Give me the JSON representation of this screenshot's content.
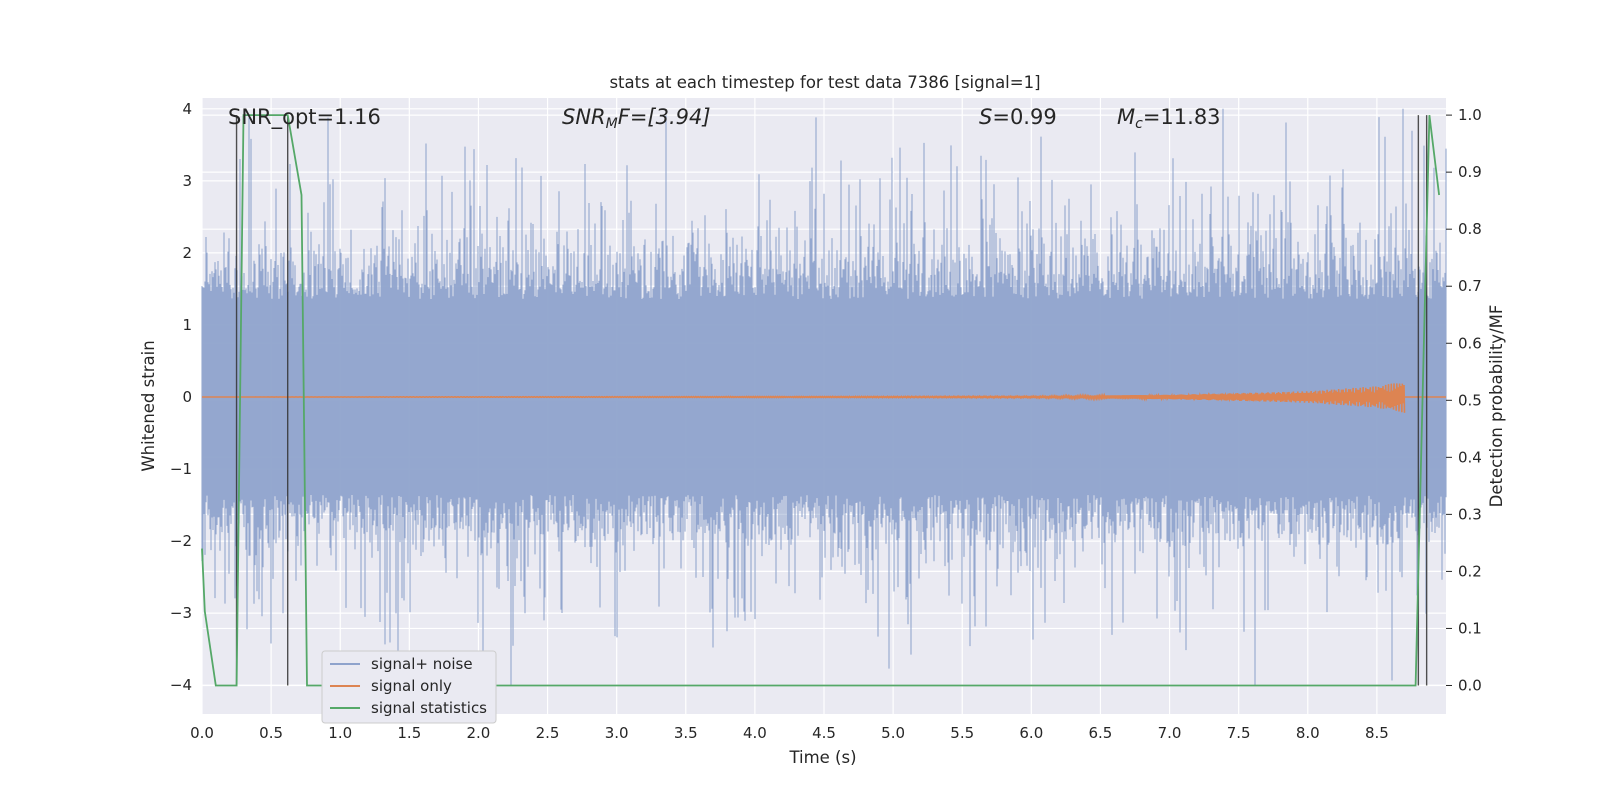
{
  "chart_data": {
    "type": "line",
    "title": "stats at each timestep for test data 7386 [signal=1]",
    "xlabel": "Time (s)",
    "ylabel": "Whitened strain",
    "y2label": "Detection probability/MF",
    "xlim": [
      0.0,
      9.0
    ],
    "ylim": [
      -4.4,
      4.15
    ],
    "y2lim": [
      -0.05,
      1.03
    ],
    "xticks": [
      "0.0",
      "0.5",
      "1.0",
      "1.5",
      "2.0",
      "2.5",
      "3.0",
      "3.5",
      "4.0",
      "4.5",
      "5.0",
      "5.5",
      "6.0",
      "6.5",
      "7.0",
      "7.5",
      "8.0",
      "8.5"
    ],
    "yticks": [
      "−4",
      "−3",
      "−2",
      "−1",
      "0",
      "1",
      "2",
      "3",
      "4"
    ],
    "y2ticks": [
      "0.0",
      "0.1",
      "0.2",
      "0.3",
      "0.4",
      "0.5",
      "0.6",
      "0.7",
      "0.8",
      "0.9",
      "1.0"
    ],
    "grid": true,
    "legend_position": "lower-left",
    "colors": {
      "noise": "#8fa3cc",
      "signal": "#dd8452",
      "stats": "#55a868",
      "vline": "#333333",
      "background": "#eaeaf2",
      "grid": "#ffffff"
    },
    "annotations": {
      "snr_opt": "SNR_opt=1.16",
      "snr_mf_base": "SNR",
      "snr_mf_sub": "M",
      "snr_mf_tail": "F=[3.94]",
      "s_symbol": "S",
      "s_value": "=0.99",
      "mc_symbol": "M",
      "mc_sub": "c",
      "mc_value": "=11.83"
    },
    "series": [
      {
        "name": "signal+ noise",
        "axis": "left",
        "style": "noise",
        "amplitude_typical": 1.6,
        "amplitude_peak": 4.0,
        "x_range": [
          0.0,
          9.0
        ]
      },
      {
        "name": "signal only",
        "axis": "left",
        "style": "chirp",
        "x": [
          0.0,
          6.0,
          7.0,
          8.0,
          8.5,
          8.7
        ],
        "envelope": [
          0.0,
          0.01,
          0.03,
          0.08,
          0.15,
          0.22
        ]
      },
      {
        "name": "signal statistics",
        "axis": "right",
        "x": [
          0.0,
          0.02,
          0.1,
          0.25,
          0.3,
          0.62,
          0.72,
          0.76,
          0.8,
          2.0,
          4.0,
          6.0,
          8.0,
          8.78,
          8.88,
          8.95
        ],
        "y": [
          0.24,
          0.13,
          0.0,
          0.0,
          1.0,
          1.0,
          0.86,
          0.0,
          0.0,
          0.0,
          0.0,
          0.0,
          0.0,
          0.0,
          1.0,
          0.86
        ]
      }
    ],
    "vlines": [
      0.25,
      0.62,
      8.8,
      8.86
    ]
  }
}
